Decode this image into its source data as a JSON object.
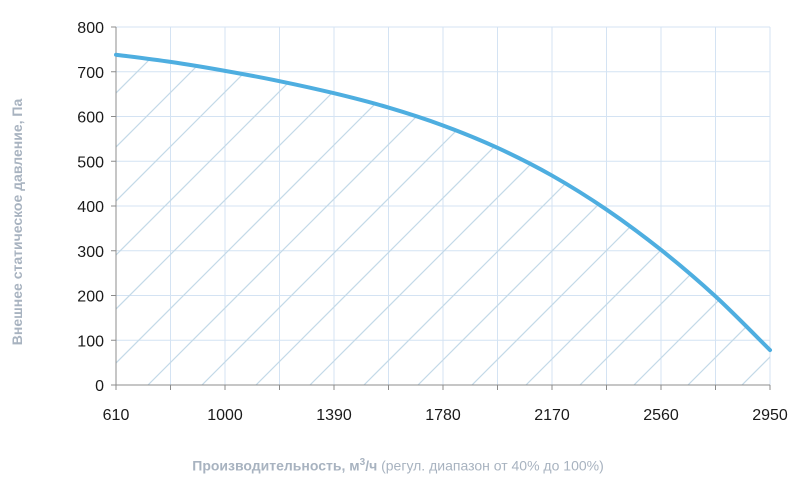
{
  "chart_data": {
    "type": "line",
    "ylabel": "Внешнее статическое давление, Па",
    "xlabel": {
      "bold_part": "Производительность, м",
      "superscript": "3",
      "unit_suffix": "/ч",
      "note": " (регул. диапазон от 40% до 100%)"
    },
    "x_ticks": [
      610,
      1000,
      1390,
      1780,
      2170,
      2560,
      2950
    ],
    "y_ticks": [
      0,
      100,
      200,
      300,
      400,
      500,
      600,
      700,
      800
    ],
    "xlim": [
      610,
      2950
    ],
    "ylim": [
      0,
      800
    ],
    "grid": true,
    "shaded_area_under_curve": "diagonal hatch",
    "series": [
      {
        "color": "#4eaee0",
        "x": [
          610,
          805,
          1000,
          1195,
          1390,
          1585,
          1780,
          1975,
          2170,
          2365,
          2560,
          2755,
          2950
        ],
        "y": [
          738,
          722,
          702,
          679,
          652,
          620,
          580,
          530,
          468,
          392,
          302,
          198,
          78
        ]
      }
    ],
    "colors": {
      "line": "#4eaee0",
      "grid": "#d4e3f3",
      "hatch": "#c3d9e8",
      "axis_title": "#a8b3c0"
    }
  }
}
